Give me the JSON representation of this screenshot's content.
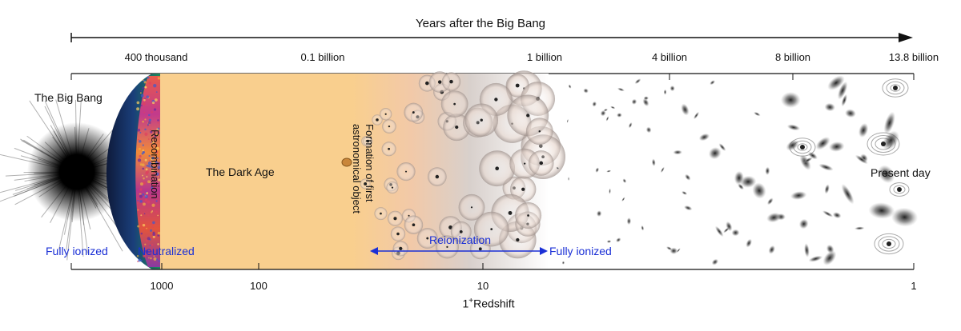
{
  "header": {
    "title": "Years after the Big Bang"
  },
  "time_axis": {
    "ticks": [
      {
        "label": "400 thousand",
        "key": "t400k"
      },
      {
        "label": "0.1 billion",
        "key": "t01b"
      },
      {
        "label": "1 billion",
        "key": "t1b"
      },
      {
        "label": "4 billion",
        "key": "t4b"
      },
      {
        "label": "8 billion",
        "key": "t8b"
      },
      {
        "label": "13.8 billion",
        "key": "t138b"
      }
    ]
  },
  "redshift_axis": {
    "title_main": "1",
    "title_sup": "+",
    "title_rest": "Redshift",
    "ticks": [
      {
        "label": "1000"
      },
      {
        "label": "100"
      },
      {
        "label": "10"
      },
      {
        "label": "1"
      }
    ]
  },
  "eras": {
    "big_bang": "The Big Bang",
    "recombination": "Recombination",
    "dark_age": "The Dark Age",
    "first_objects_line1": "Formation of first",
    "first_objects_line2": "astronomical object",
    "present_day": "Present day"
  },
  "states": {
    "fully_ionized_left": "Fully ionized",
    "neutralized": "Neutralized",
    "reionization": "Reionization",
    "fully_ionized_right": "Fully ionized"
  },
  "colors": {
    "dark_age": "#f9cf8e",
    "state_text": "#1a2fd6",
    "axis": "#111111"
  }
}
